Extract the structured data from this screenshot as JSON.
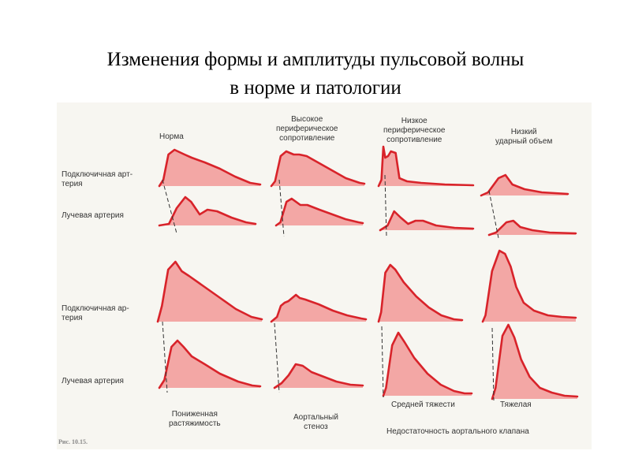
{
  "title_line1": "Изменения формы и амплитуды пульсовой волны",
  "title_line2": "в норме и патологии",
  "labels": {
    "col_norm": "Норма",
    "col_high_resist": "Высокое\nпериферическое\nсопротивление",
    "col_low_resist": "Низкое\nпериферическое\nсопротивление",
    "col_low_stroke": "Низкий\nударный объем",
    "row_subclavian_1": "Подключичная арт-\nтерия",
    "row_radial_1": "Лучевая артерия",
    "row_subclavian_2": "Подключичная ар-\nтерия",
    "row_radial_2": "Лучевая артерия",
    "bottom_low_distensibility": "Пониженная\nрастяжимость",
    "bottom_aortic_stenosis": "Аортальный\nстеноз",
    "bottom_moderate": "Средней тяжести",
    "bottom_severe": "Тяжелая",
    "bottom_aortic_insufficiency": "Недостаточность аортального клапана",
    "figure_caption": "Рис. 10.15."
  },
  "colors": {
    "wave_stroke": "#d8232a",
    "wave_fill": "#f3a7a5",
    "dashed_line": "#333333",
    "figure_background": "#f7f6f1"
  }
}
